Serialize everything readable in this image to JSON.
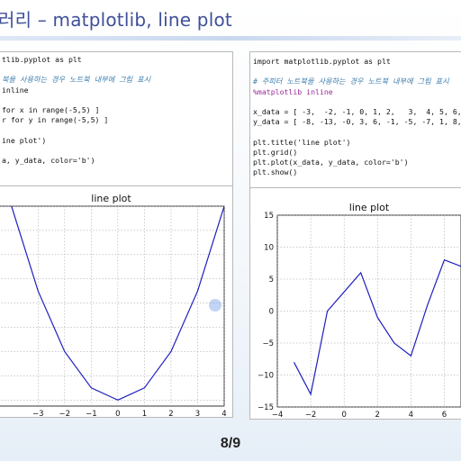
{
  "slide": {
    "title": "러리 – matplotlib,  line plot",
    "page": "8/9"
  },
  "left_code": {
    "lines": [
      "tlib.pyplot as plt",
      "",
      "북을 사용하는 경우 노트북 내부에 그림 표시",
      "inline",
      "",
      "for x in range(-5,5) ]",
      "r for y in range(-5,5) ]",
      "",
      "ine plot')",
      "",
      "a, y_data, color='b')"
    ]
  },
  "right_code": {
    "lines": [
      "import matplotlib.pyplot as plt",
      "",
      "# 주피터 노트북을 사용하는 경우 노트북 내부에 그림 표시",
      "%matplotlib inline",
      "",
      "x_data = [ -3,  -2, -1, 0, 1, 2,   3,  4, 5, 6, 7,  8, 9",
      "y_data = [ -8, -13, -0, 3, 6, -1, -5, -7, 1, 8, 7, 12, 13",
      "",
      "plt.title('line plot')",
      "plt.grid()",
      "plt.plot(x_data, y_data, color='b')",
      "plt.show()"
    ]
  },
  "chart_data": [
    {
      "type": "line",
      "title": "line plot",
      "x": [
        -5,
        -4,
        -3,
        -2,
        -1,
        0,
        1,
        2,
        3,
        4
      ],
      "y": [
        25,
        16,
        9,
        4,
        1,
        0,
        1,
        4,
        9,
        16
      ],
      "xlim": [
        -4.5,
        4
      ],
      "ylim": [
        -0.5,
        16
      ],
      "xticks": [
        "−3",
        "−2",
        "−1",
        "0",
        "1",
        "2",
        "3",
        "4"
      ],
      "color": "#1f1fbf",
      "grid": true
    },
    {
      "type": "line",
      "title": "line plot",
      "x": [
        -3,
        -2,
        -1,
        0,
        1,
        2,
        3,
        4,
        5,
        6,
        7
      ],
      "y": [
        -8,
        -13,
        0,
        3,
        6,
        -1,
        -5,
        -7,
        1,
        8,
        7
      ],
      "xlim": [
        -4,
        7
      ],
      "ylim": [
        -15,
        15
      ],
      "xticks": [
        "−4",
        "−2",
        "0",
        "2",
        "4",
        "6"
      ],
      "yticks": [
        "15",
        "10",
        "5",
        "0",
        "−5",
        "−10",
        "−15"
      ],
      "color": "#1f1fbf",
      "grid": true
    }
  ],
  "colors": {
    "title": "#3f4f9a",
    "line": "#1f1fbf",
    "grid": "#9a9a9a"
  }
}
